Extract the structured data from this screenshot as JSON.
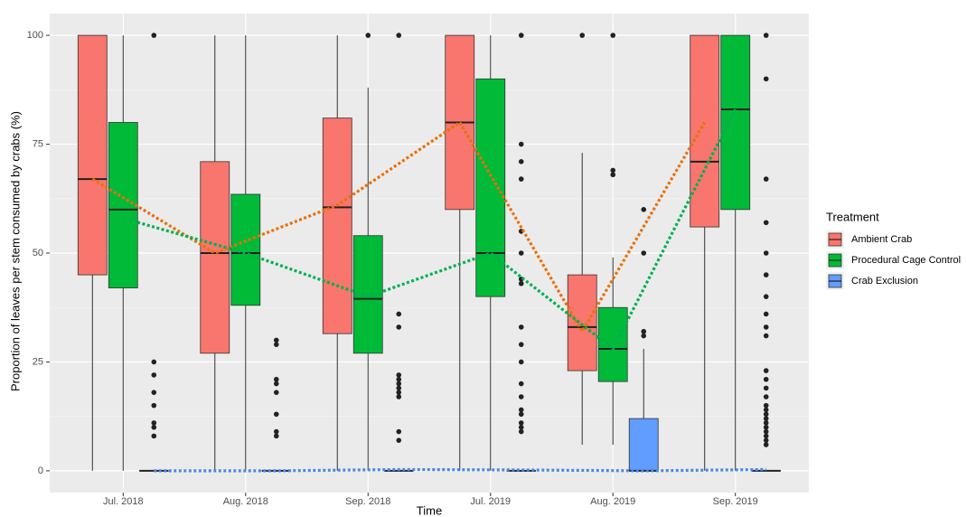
{
  "chart_data": {
    "type": "box",
    "x_label": "Time",
    "y_label": "Proportion of leaves per stem consumed by crabs (%)",
    "legend_title": "Treatment",
    "categories": [
      "Jul. 2018",
      "Aug. 2018",
      "Sep. 2018",
      "Jul. 2019",
      "Aug. 2019",
      "Sep. 2019"
    ],
    "ylim": [
      -5,
      105
    ],
    "yticks": [
      0,
      25,
      50,
      75,
      100
    ],
    "grid": true,
    "legend": "right",
    "series": [
      {
        "name": "Ambient Crab",
        "color": "#F8766D",
        "boxes": [
          {
            "min": 0,
            "q1": 45,
            "median": 67,
            "q3": 100,
            "max": 100,
            "outliers": []
          },
          {
            "min": 0,
            "q1": 27,
            "median": 50,
            "q3": 71,
            "max": 100,
            "outliers": []
          },
          {
            "min": 0,
            "q1": 31.5,
            "median": 60.5,
            "q3": 81,
            "max": 100,
            "outliers": []
          },
          {
            "min": 0,
            "q1": 60,
            "median": 80,
            "q3": 100,
            "max": 100,
            "outliers": []
          },
          {
            "min": 6,
            "q1": 23,
            "median": 33,
            "q3": 45,
            "max": 73,
            "outliers": [
              100
            ]
          },
          {
            "min": 0,
            "q1": 56,
            "median": 71,
            "q3": 100,
            "max": 100,
            "outliers": []
          }
        ]
      },
      {
        "name": "Procedural Cage Control",
        "color": "#00BA38",
        "boxes": [
          {
            "min": 0,
            "q1": 42,
            "median": 60,
            "q3": 80,
            "max": 100,
            "outliers": []
          },
          {
            "min": 0,
            "q1": 38,
            "median": 50,
            "q3": 63.5,
            "max": 100,
            "outliers": []
          },
          {
            "min": 0,
            "q1": 27,
            "median": 39.5,
            "q3": 54,
            "max": 88,
            "outliers": [
              100
            ]
          },
          {
            "min": 0,
            "q1": 40,
            "median": 50,
            "q3": 90,
            "max": 100,
            "outliers": []
          },
          {
            "min": 6,
            "q1": 20.5,
            "median": 28,
            "q3": 37.5,
            "max": 49,
            "outliers": [
              68,
              69,
              100
            ]
          },
          {
            "min": 0,
            "q1": 60,
            "median": 83,
            "q3": 100,
            "max": 100,
            "outliers": []
          }
        ]
      },
      {
        "name": "Crab Exclusion",
        "color": "#619CFF",
        "boxes": [
          {
            "min": 0,
            "q1": 0,
            "median": 0,
            "q3": 0,
            "max": 0,
            "outliers": [
              8,
              10,
              11,
              15,
              18,
              22,
              25,
              100
            ]
          },
          {
            "min": 0,
            "q1": 0,
            "median": 0,
            "q3": 0,
            "max": 0,
            "outliers": [
              8,
              9,
              13,
              18,
              20,
              21,
              29,
              30
            ]
          },
          {
            "min": 0,
            "q1": 0,
            "median": 0,
            "q3": 0,
            "max": 0,
            "outliers": [
              7,
              9,
              17,
              18,
              19,
              20,
              21,
              22,
              33,
              36,
              100
            ]
          },
          {
            "min": 0,
            "q1": 0,
            "median": 0,
            "q3": 0,
            "max": 0,
            "outliers": [
              9,
              10,
              11,
              13,
              14,
              17,
              20,
              25,
              29,
              33,
              43,
              44,
              50,
              55,
              67,
              71,
              75,
              100
            ]
          },
          {
            "min": 0,
            "q1": 0,
            "median": 0,
            "q3": 12,
            "max": 28,
            "outliers": [
              31,
              32,
              50,
              60
            ]
          },
          {
            "min": 0,
            "q1": 0,
            "median": 0,
            "q3": 0,
            "max": 0,
            "outliers": [
              6,
              7,
              8,
              9,
              10,
              11,
              12,
              13,
              14,
              15,
              17,
              19,
              21,
              23,
              31,
              33,
              36,
              40,
              45,
              50,
              57,
              67,
              90,
              100
            ]
          }
        ]
      }
    ],
    "trend_lines": [
      {
        "color": "#E8700A",
        "values": [
          67,
          50,
          61,
          80,
          32,
          80
        ]
      },
      {
        "color": "#00B050",
        "values": [
          58,
          50,
          40,
          50,
          28,
          83
        ]
      },
      {
        "color": "#4A86E8",
        "values": [
          0,
          0,
          0.3,
          0.2,
          0,
          0.3
        ]
      }
    ]
  }
}
